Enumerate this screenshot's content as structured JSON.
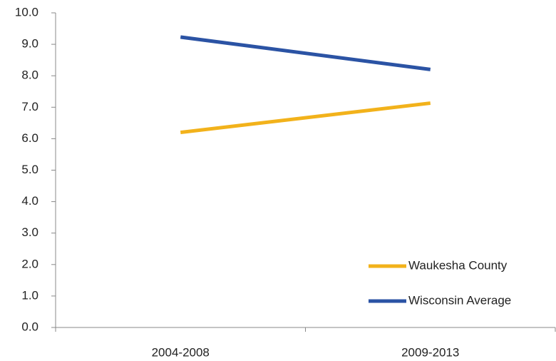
{
  "chart_data": {
    "type": "line",
    "categories": [
      "2004-2008",
      "2009-2013"
    ],
    "series": [
      {
        "name": "Waukesha County",
        "color": "#f2b21b",
        "values": [
          6.2,
          7.13
        ]
      },
      {
        "name": "Wisconsin Average",
        "color": "#2b53a4",
        "values": [
          9.23,
          8.2
        ]
      }
    ],
    "ylim": [
      0,
      10
    ],
    "yticks": [
      {
        "value": 0,
        "label": "0.0"
      },
      {
        "value": 1,
        "label": "1.0"
      },
      {
        "value": 2,
        "label": "2.0"
      },
      {
        "value": 3,
        "label": "3.0"
      },
      {
        "value": 4,
        "label": "4.0"
      },
      {
        "value": 5,
        "label": "5.0"
      },
      {
        "value": 6,
        "label": "6.0"
      },
      {
        "value": 7,
        "label": "7.0"
      },
      {
        "value": 8,
        "label": "8.0"
      },
      {
        "value": 9,
        "label": "9.0"
      },
      {
        "value": 10,
        "label": "10.0"
      }
    ],
    "grid": false,
    "legend": "lower-right"
  }
}
